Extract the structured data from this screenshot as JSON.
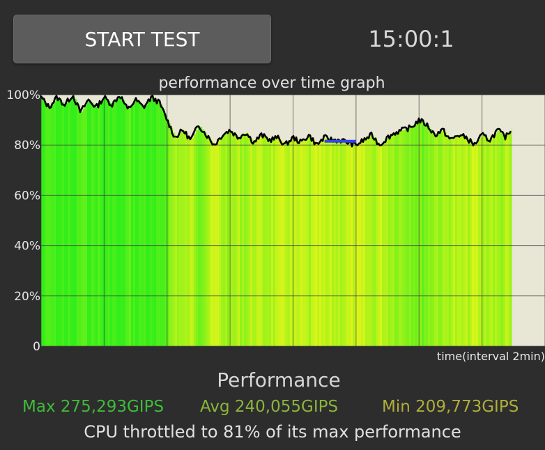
{
  "toolbar": {
    "start_label": "START TEST",
    "timer": "15:00:1"
  },
  "graph": {
    "title": "performance over time graph",
    "x_caption": "time(interval 2min)"
  },
  "chart_data": {
    "type": "area",
    "title": "performance over time graph",
    "xlabel": "time(interval 2min)",
    "ylabel": "",
    "y_ticks": [
      "100%",
      "80%",
      "60%",
      "40%",
      "20%",
      "0"
    ],
    "ylim": [
      0,
      100
    ],
    "x_range_minutes": [
      0,
      16
    ],
    "x_grid_interval_minutes": 2,
    "grid": true,
    "colors": {
      "plot_background": "#e8e6d5",
      "line": "#000000",
      "grid": "#3a3a3a",
      "fill_high": "#33ee1a",
      "fill_low": "#d9f51a",
      "marker": "#3344ee"
    },
    "series": [
      {
        "x": [
          0,
          0.25,
          0.5,
          0.75,
          1,
          1.25,
          1.5,
          1.75,
          2,
          2.25,
          2.5,
          2.75,
          3,
          3.25,
          3.5,
          3.75,
          4,
          4.25,
          4.5,
          4.75,
          5,
          5.25,
          5.5,
          5.75,
          6,
          6.25,
          6.5,
          6.75,
          7,
          7.25,
          7.5,
          7.75,
          8,
          8.25,
          8.5,
          8.75,
          9,
          9.25,
          9.5,
          9.75,
          10,
          10.25,
          10.5,
          10.75,
          11,
          11.25,
          11.5,
          11.75,
          12,
          12.25,
          12.5,
          12.75,
          13,
          13.25,
          13.5,
          13.75,
          14,
          14.25,
          14.5,
          14.75,
          14.95
        ],
        "y": [
          99,
          95,
          99,
          96,
          100,
          93,
          98,
          95,
          99,
          96,
          100,
          94,
          98,
          95,
          99,
          97,
          90,
          83,
          86,
          82,
          88,
          84,
          80,
          84,
          86,
          83,
          85,
          81,
          84,
          82,
          83,
          80,
          83,
          81,
          84,
          80,
          83,
          82,
          82,
          81,
          80,
          82,
          84,
          80,
          83,
          85,
          86,
          87,
          90,
          88,
          84,
          86,
          82,
          84,
          83,
          80,
          84,
          82,
          86,
          83,
          87
        ]
      }
    ],
    "marker_segment": {
      "x": [
        9.0,
        10.0
      ],
      "y": 81.5
    }
  },
  "performance": {
    "title": "Performance",
    "max": "Max 275,293GIPS",
    "avg": "Avg 240,055GIPS",
    "min": "Min 209,773GIPS",
    "throttle": "CPU throttled to 81% of its max performance"
  }
}
